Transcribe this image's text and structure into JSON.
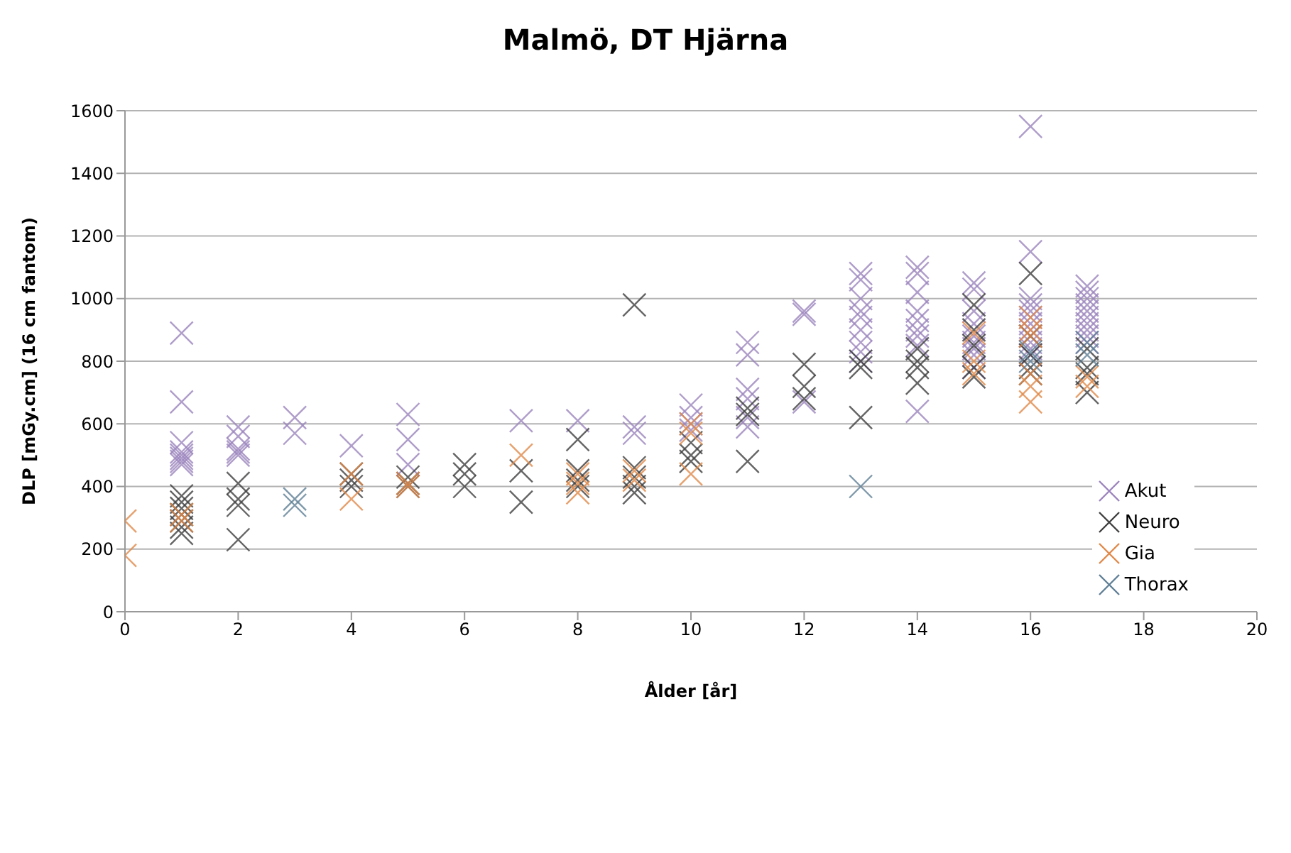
{
  "chart_data": {
    "type": "scatter",
    "title": "Malmö, DT Hjärna",
    "xlabel": "Ålder [år]",
    "ylabel": "DLP [mGy.cm] (16 cm fantom)",
    "xlim": [
      0,
      20
    ],
    "xticks": [
      0,
      2,
      4,
      6,
      8,
      10,
      12,
      14,
      16,
      18,
      20
    ],
    "ylim": [
      0,
      1600
    ],
    "yticks": [
      0,
      200,
      400,
      600,
      800,
      1000,
      1200,
      1400,
      1600
    ],
    "grid": "y",
    "legend": "bottom right",
    "marker": "cross",
    "series": [
      {
        "name": "Akut",
        "color": "#9b84bd",
        "x": [
          1,
          1,
          1,
          1,
          1,
          1,
          1,
          1,
          2,
          2,
          2,
          2,
          2,
          3,
          3,
          4,
          5,
          5,
          5,
          7,
          8,
          9,
          9,
          10,
          10,
          10,
          10,
          11,
          11,
          11,
          11,
          11,
          11,
          12,
          12,
          12,
          13,
          13,
          13,
          13,
          13,
          13,
          13,
          13,
          13,
          14,
          14,
          14,
          14,
          14,
          14,
          14,
          14,
          14,
          15,
          15,
          15,
          15,
          15,
          15,
          15,
          15,
          15,
          16,
          16,
          16,
          16,
          16,
          16,
          16,
          16,
          16,
          16,
          16,
          16,
          17,
          17,
          17,
          17,
          17,
          17,
          17,
          17,
          17,
          17
        ],
        "values": [
          890,
          670,
          540,
          510,
          500,
          490,
          480,
          470,
          590,
          560,
          520,
          510,
          500,
          620,
          570,
          530,
          630,
          550,
          470,
          610,
          610,
          590,
          570,
          660,
          620,
          600,
          580,
          860,
          820,
          710,
          680,
          620,
          590,
          960,
          950,
          670,
          1080,
          1060,
          1000,
          960,
          940,
          900,
          860,
          830,
          800,
          1100,
          1080,
          1020,
          960,
          930,
          900,
          880,
          850,
          640,
          1050,
          1030,
          960,
          920,
          880,
          860,
          840,
          820,
          780,
          1550,
          1150,
          1000,
          980,
          960,
          940,
          920,
          900,
          880,
          860,
          840,
          820,
          1040,
          1020,
          1000,
          980,
          960,
          940,
          920,
          900,
          880,
          860
        ]
      },
      {
        "name": "Neuro",
        "color": "#3f3f3f",
        "x": [
          1,
          1,
          1,
          1,
          1,
          1,
          1,
          2,
          2,
          2,
          2,
          4,
          4,
          4,
          5,
          5,
          5,
          6,
          6,
          6,
          7,
          7,
          8,
          8,
          8,
          8,
          9,
          9,
          9,
          9,
          9,
          10,
          10,
          10,
          11,
          11,
          11,
          12,
          12,
          12,
          13,
          13,
          13,
          14,
          14,
          14,
          14,
          15,
          15,
          15,
          15,
          15,
          16,
          16,
          16,
          16,
          16,
          17,
          17,
          17,
          17
        ],
        "values": [
          370,
          350,
          330,
          310,
          290,
          270,
          250,
          410,
          360,
          340,
          230,
          440,
          420,
          400,
          430,
          410,
          400,
          470,
          440,
          400,
          450,
          350,
          550,
          450,
          420,
          400,
          980,
          460,
          430,
          400,
          380,
          540,
          500,
          480,
          650,
          630,
          480,
          790,
          720,
          680,
          800,
          780,
          620,
          840,
          800,
          780,
          730,
          980,
          900,
          850,
          780,
          750,
          1080,
          880,
          820,
          780,
          760,
          840,
          780,
          760,
          700
        ]
      },
      {
        "name": "Gia",
        "color": "#e0894a",
        "x": [
          0,
          0,
          1,
          1,
          4,
          4,
          5,
          5,
          7,
          8,
          8,
          8,
          9,
          9,
          10,
          10,
          10,
          15,
          15,
          15,
          16,
          16,
          16,
          16,
          16,
          16,
          17,
          17
        ],
        "values": [
          290,
          180,
          310,
          290,
          440,
          360,
          410,
          400,
          500,
          440,
          410,
          380,
          450,
          420,
          600,
          570,
          440,
          890,
          800,
          760,
          940,
          900,
          880,
          760,
          720,
          670,
          750,
          720
        ]
      },
      {
        "name": "Thorax",
        "color": "#5f7f96",
        "x": [
          3,
          3,
          13,
          16,
          16,
          17,
          17
        ],
        "values": [
          360,
          340,
          400,
          830,
          800,
          860,
          820
        ]
      }
    ]
  }
}
